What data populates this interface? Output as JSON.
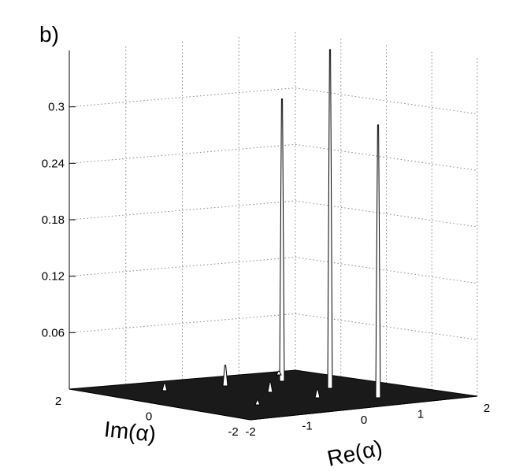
{
  "panel_label": "b)",
  "chart_data": {
    "type": "surface",
    "xlabel": "Re(α)",
    "ylabel": "Im(α)",
    "zlabel": "",
    "xlim": [
      -2,
      2
    ],
    "ylim": [
      -2,
      2
    ],
    "zlim": [
      0,
      0.36
    ],
    "grid": true,
    "x_ticks": [
      "-2",
      "-1",
      "0",
      "1",
      "2"
    ],
    "y_ticks": [
      "-2",
      "0",
      "2"
    ],
    "z_ticks": [
      "0.06",
      "0.12",
      "0.18",
      "0.24",
      "0.3"
    ],
    "z_tick_values": [
      0.06,
      0.12,
      0.18,
      0.24,
      0.3
    ],
    "peaks": [
      {
        "z": 0.36
      },
      {
        "z": 0.3
      },
      {
        "z": 0.29
      },
      {
        "z": 0.022
      },
      {
        "z": 0.011
      },
      {
        "z": 0.009
      },
      {
        "z": 0.008
      },
      {
        "z": 0.005
      },
      {
        "z": 0.004
      }
    ]
  }
}
